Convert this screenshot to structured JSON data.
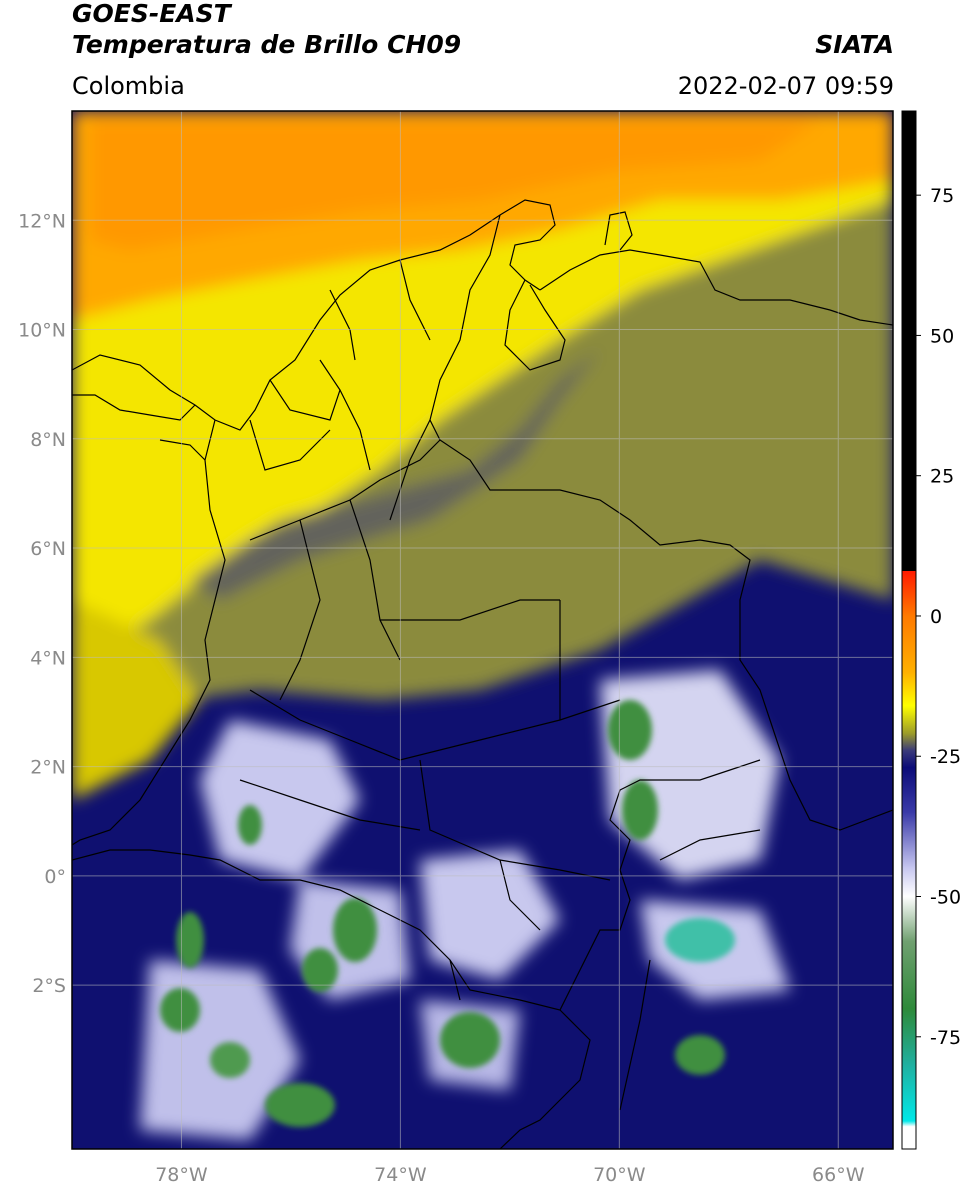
{
  "header": {
    "satellite": "GOES-EAST",
    "product": "Temperatura de Brillo CH09",
    "organization": "SIATA",
    "region": "Colombia",
    "datetime": "2022-02-07 09:59"
  },
  "map": {
    "lon_range": [
      -80,
      -65
    ],
    "lat_range": [
      -5,
      14
    ],
    "lat_ticks": [
      {
        "value": 12,
        "label": "12°N"
      },
      {
        "value": 10,
        "label": "10°N"
      },
      {
        "value": 8,
        "label": "8°N"
      },
      {
        "value": 6,
        "label": "6°N"
      },
      {
        "value": 4,
        "label": "4°N"
      },
      {
        "value": 2,
        "label": "2°N"
      },
      {
        "value": 0,
        "label": "0°"
      },
      {
        "value": -2,
        "label": "2°S"
      }
    ],
    "lon_ticks": [
      {
        "value": -78,
        "label": "78°W"
      },
      {
        "value": -74,
        "label": "74°W"
      },
      {
        "value": -70,
        "label": "70°W"
      },
      {
        "value": -66,
        "label": "66°W"
      }
    ],
    "grid": true,
    "grid_color": "#bdbdbd"
  },
  "colorbar": {
    "range": [
      -95,
      90
    ],
    "ticks": [
      {
        "value": 75,
        "label": "75"
      },
      {
        "value": 50,
        "label": "50"
      },
      {
        "value": 25,
        "label": "25"
      },
      {
        "value": 0,
        "label": "0"
      },
      {
        "value": -25,
        "label": "-25"
      },
      {
        "value": -50,
        "label": "-50"
      },
      {
        "value": -75,
        "label": "-75"
      }
    ],
    "stops": [
      {
        "value": 90,
        "color": "#000000"
      },
      {
        "value": 8,
        "color": "#000000"
      },
      {
        "value": 8,
        "color": "#ff1a00"
      },
      {
        "value": 0,
        "color": "#ff7a00"
      },
      {
        "value": -10,
        "color": "#ffb000"
      },
      {
        "value": -16,
        "color": "#ffff00"
      },
      {
        "value": -21,
        "color": "#9a9a2a"
      },
      {
        "value": -24,
        "color": "#3a3a7a"
      },
      {
        "value": -27,
        "color": "#0b0b78"
      },
      {
        "value": -35,
        "color": "#3a3aa8"
      },
      {
        "value": -45,
        "color": "#c8c8f0"
      },
      {
        "value": -50,
        "color": "#ffffff"
      },
      {
        "value": -58,
        "color": "#70a070"
      },
      {
        "value": -70,
        "color": "#2e8a3a"
      },
      {
        "value": -80,
        "color": "#20b0a0"
      },
      {
        "value": -90,
        "color": "#00e8e8"
      },
      {
        "value": -91,
        "color": "#ffffff"
      },
      {
        "value": -95,
        "color": "#ffffff"
      }
    ]
  },
  "colors": {
    "sea_north": "#ffa400",
    "andes_yellow": "#ffee00",
    "olive": "#8f8f3a",
    "deep_blue": "#0f1070",
    "cloud_white": "#d8d8f2",
    "cold_green": "#3f8f3f",
    "cold_cyan": "#40c0a8"
  }
}
